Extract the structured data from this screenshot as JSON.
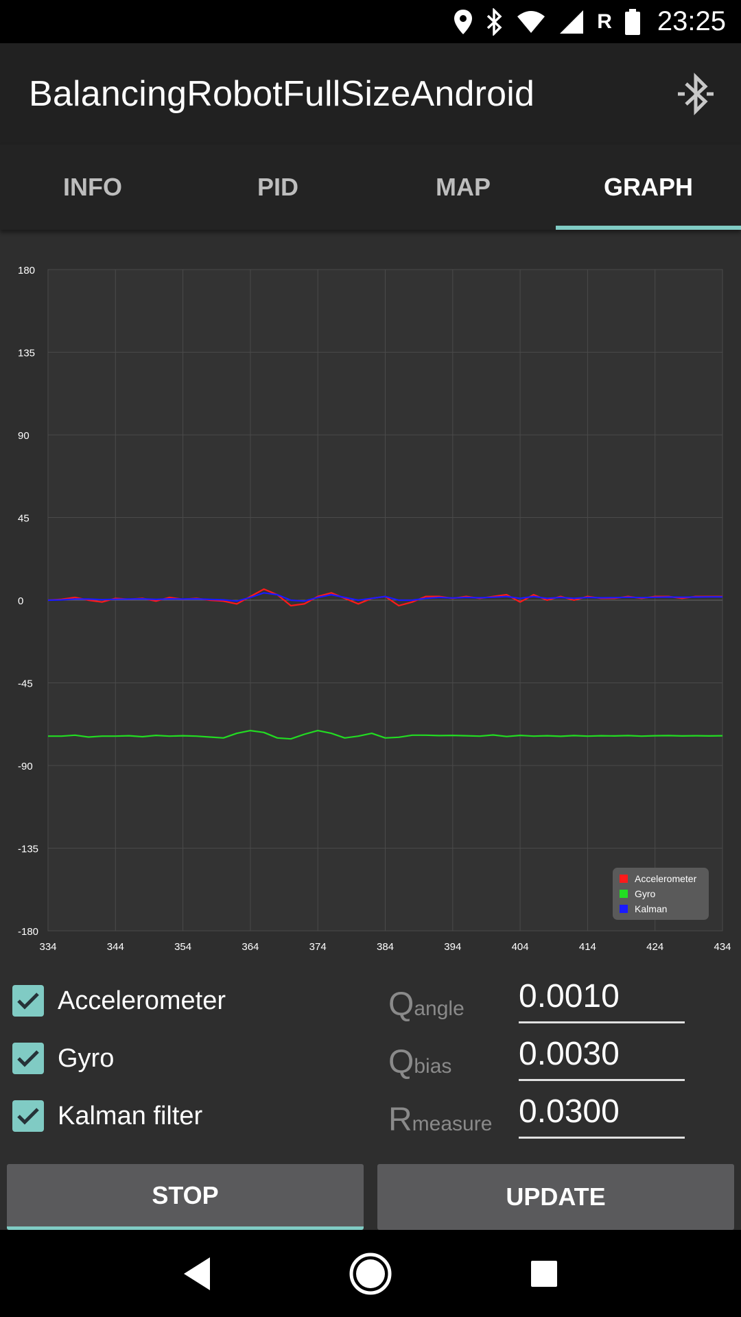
{
  "status_bar": {
    "roaming": "R",
    "time": "23:25"
  },
  "app_bar": {
    "title": "BalancingRobotFullSizeAndroid",
    "bluetooth_icon": "bluetooth-searching-icon"
  },
  "tabs": [
    {
      "label": "INFO",
      "active": false
    },
    {
      "label": "PID",
      "active": false
    },
    {
      "label": "MAP",
      "active": false
    },
    {
      "label": "GRAPH",
      "active": true
    }
  ],
  "chart_data": {
    "type": "line",
    "title": "",
    "xlabel": "",
    "ylabel": "",
    "xlim": [
      334,
      434
    ],
    "ylim": [
      -180,
      180
    ],
    "x_ticks": [
      "334",
      "344",
      "354",
      "364",
      "374",
      "384",
      "394",
      "404",
      "414",
      "424",
      "434"
    ],
    "y_ticks": [
      "180",
      "135",
      "90",
      "45",
      "0",
      "-45",
      "-90",
      "-135",
      "-180"
    ],
    "grid": true,
    "legend_position": "bottom-right",
    "series": [
      {
        "name": "Accelerometer",
        "color": "#ff1a1a",
        "x": [
          334,
          336,
          338,
          340,
          342,
          344,
          346,
          348,
          350,
          352,
          354,
          356,
          358,
          360,
          362,
          364,
          366,
          368,
          370,
          372,
          374,
          376,
          378,
          380,
          382,
          384,
          386,
          388,
          390,
          392,
          394,
          396,
          398,
          400,
          402,
          404,
          406,
          408,
          410,
          412,
          414,
          416,
          418,
          420,
          422,
          424,
          426,
          428,
          430,
          432,
          434
        ],
        "y": [
          0,
          0.5,
          1.5,
          0,
          -1,
          1,
          0.5,
          1,
          -0.5,
          1.5,
          0.5,
          1,
          0,
          -0.5,
          -2,
          2,
          6,
          3,
          -3,
          -2,
          2,
          4,
          1,
          -2,
          1,
          2,
          -3,
          -1,
          2,
          2,
          1,
          2,
          1,
          2,
          3,
          -1,
          3,
          0,
          2,
          0,
          2,
          1,
          1,
          2,
          1,
          2,
          2,
          1,
          2,
          2,
          2
        ]
      },
      {
        "name": "Gyro",
        "color": "#22dd22",
        "x": [
          334,
          336,
          338,
          340,
          342,
          344,
          346,
          348,
          350,
          352,
          354,
          356,
          358,
          360,
          362,
          364,
          366,
          368,
          370,
          372,
          374,
          376,
          378,
          380,
          382,
          384,
          386,
          388,
          390,
          392,
          394,
          396,
          398,
          400,
          402,
          404,
          406,
          408,
          410,
          412,
          414,
          416,
          418,
          420,
          422,
          424,
          426,
          428,
          430,
          432,
          434
        ],
        "y": [
          -74,
          -74,
          -73.5,
          -74.5,
          -74,
          -74,
          -73.8,
          -74.3,
          -73.6,
          -74,
          -73.8,
          -74,
          -74.5,
          -75,
          -72.5,
          -71,
          -72,
          -75,
          -75.5,
          -73,
          -71,
          -72.5,
          -75,
          -74,
          -72.5,
          -75,
          -74.6,
          -73.5,
          -73.5,
          -73.7,
          -73.6,
          -73.8,
          -74,
          -73.4,
          -74.2,
          -73.6,
          -74,
          -73.8,
          -74.1,
          -73.7,
          -74,
          -73.8,
          -73.9,
          -73.7,
          -74,
          -73.8,
          -73.7,
          -73.9,
          -73.8,
          -73.9,
          -73.8
        ]
      },
      {
        "name": "Kalman",
        "color": "#1a1aff",
        "x": [
          334,
          336,
          338,
          340,
          342,
          344,
          346,
          348,
          350,
          352,
          354,
          356,
          358,
          360,
          362,
          364,
          366,
          368,
          370,
          372,
          374,
          376,
          378,
          380,
          382,
          384,
          386,
          388,
          390,
          392,
          394,
          396,
          398,
          400,
          402,
          404,
          406,
          408,
          410,
          412,
          414,
          416,
          418,
          420,
          422,
          424,
          426,
          428,
          430,
          432,
          434
        ],
        "y": [
          0,
          0.2,
          0.6,
          0.6,
          0.3,
          0.5,
          0.6,
          0.7,
          0.4,
          0.7,
          0.6,
          0.7,
          0.4,
          0.2,
          -0.5,
          1.5,
          4,
          3,
          0,
          -0.5,
          1.5,
          3,
          1.5,
          0,
          1,
          2,
          0,
          0,
          1,
          1.5,
          1.2,
          1.5,
          1.3,
          1.6,
          2,
          1,
          2,
          1,
          1.5,
          1,
          1.5,
          1.3,
          1.4,
          1.6,
          1.4,
          1.6,
          1.7,
          1.6,
          1.7,
          1.8,
          1.8
        ]
      }
    ]
  },
  "checkboxes": [
    {
      "label": "Accelerometer",
      "checked": true
    },
    {
      "label": "Gyro",
      "checked": true
    },
    {
      "label": "Kalman filter",
      "checked": true
    }
  ],
  "params": [
    {
      "big": "Q",
      "small": "angle",
      "value": "0.0010"
    },
    {
      "big": "Q",
      "small": "bias",
      "value": "0.0030"
    },
    {
      "big": "R",
      "small": "measure",
      "value": "0.0300"
    }
  ],
  "buttons": {
    "stop": "STOP",
    "update": "UPDATE"
  },
  "colors": {
    "accent": "#80cbc4",
    "app_bar": "#212121",
    "background": "#2e2e2e"
  }
}
